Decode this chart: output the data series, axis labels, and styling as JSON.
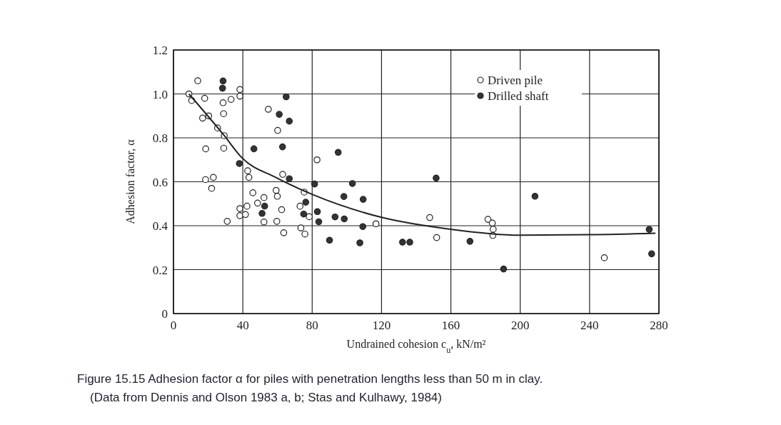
{
  "chart_data": {
    "type": "scatter",
    "title": "Figure 15.15   Adhesion factor α for piles with penetration lengths less than 50 m in clay.",
    "annotations": [
      "(Data from Dennis and Olson 1983 a, b; Stas and Kulhawy, 1984)"
    ],
    "xlabel": "Undrained cohesion c$_{u}$, kN/m²",
    "ylabel": "Adhesion factor, α",
    "xlim": [
      0,
      280
    ],
    "ylim": [
      0,
      1.2
    ],
    "xticks": [
      0,
      40,
      80,
      120,
      160,
      200,
      240,
      280
    ],
    "yticks": [
      0,
      0.2,
      0.4,
      0.6,
      0.8,
      {
        "value": 1,
        "label": "1.0"
      },
      1.2
    ],
    "grid": true,
    "legend": "top right",
    "marker": "circle",
    "series": [
      {
        "name": "Driven pile",
        "color": "#ffffff",
        "x": [
          14,
          8.9,
          10.5,
          18,
          28.6,
          28.9,
          33.2,
          38.3,
          38.3,
          16.8,
          20.3,
          25.4,
          29.3,
          18.6,
          29,
          18.5,
          23,
          22,
          42.8,
          43.5,
          54.7,
          60.1,
          63,
          75.4,
          45.8,
          52.2,
          59.2,
          59.9,
          48.5,
          42.4,
          38.3,
          38.3,
          41.5,
          62.4,
          73,
          78.3,
          52.2,
          59.6,
          31,
          63.6,
          73.5,
          75.8,
          82.8,
          116.8,
          147.8,
          151.8,
          181.4,
          183.9,
          184.4,
          184.2,
          248.5
        ],
        "values": [
          1.06,
          1.0,
          0.97,
          0.98,
          0.96,
          0.91,
          0.975,
          1.02,
          0.99,
          0.89,
          0.9,
          0.845,
          0.81,
          0.75,
          0.753,
          0.61,
          0.62,
          0.57,
          0.65,
          0.62,
          0.93,
          0.834,
          0.634,
          0.553,
          0.55,
          0.528,
          0.561,
          0.534,
          0.503,
          0.489,
          0.478,
          0.446,
          0.451,
          0.473,
          0.489,
          0.441,
          0.417,
          0.42,
          0.42,
          0.368,
          0.39,
          0.362,
          0.7,
          0.409,
          0.437,
          0.346,
          0.429,
          0.412,
          0.384,
          0.356,
          0.254
        ]
      },
      {
        "name": "Drilled shaft",
        "color": "#333333",
        "x": [
          28.6,
          28.3,
          65,
          61,
          66.8,
          62.9,
          46.4,
          38,
          66.8,
          52.6,
          51.1,
          76.3,
          75.1,
          95,
          81.4,
          103.2,
          98.3,
          109.4,
          83,
          93.2,
          98.5,
          83.8,
          109.2,
          90,
          107.5,
          132.1,
          136.3,
          151.5,
          171,
          190.4,
          208.5,
          274.4,
          275.8
        ],
        "values": [
          1.059,
          1.026,
          0.987,
          0.907,
          0.876,
          0.759,
          0.75,
          0.683,
          0.614,
          0.489,
          0.456,
          0.507,
          0.453,
          0.734,
          0.59,
          0.592,
          0.533,
          0.52,
          0.464,
          0.44,
          0.431,
          0.418,
          0.396,
          0.334,
          0.322,
          0.325,
          0.325,
          0.617,
          0.329,
          0.203,
          0.534,
          0.383,
          0.272
        ]
      },
      {
        "type": "line",
        "color": "#222222",
        "marker": "none",
        "x": [
          8.9,
          29.3,
          39.4,
          59,
          80.8,
          119.6,
          159.9,
          200,
          240,
          278
        ],
        "values": [
          1.0,
          0.81,
          0.71,
          0.62,
          0.54,
          0.439,
          0.384,
          0.357,
          0.359,
          0.366
        ]
      }
    ]
  }
}
